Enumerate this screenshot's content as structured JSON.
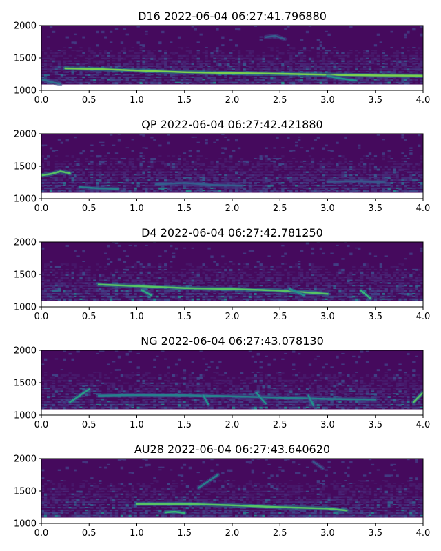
{
  "chart_data": [
    {
      "type": "heatmap",
      "title": "D16 2022-06-04 06:27:41.796880",
      "xlim": [
        0.0,
        4.0
      ],
      "ylim": [
        1000,
        2000
      ],
      "xticks": [
        "0.0",
        "0.5",
        "1.0",
        "1.5",
        "2.0",
        "2.5",
        "3.0",
        "3.5",
        "4.0"
      ],
      "yticks": [
        "1000",
        "1500",
        "2000"
      ],
      "data_floor": 1090,
      "colormap": "viridis",
      "grid": false,
      "tracks": [
        {
          "x": [
            0.25,
            0.6,
            1.0,
            1.5,
            2.0,
            2.5,
            3.0,
            3.5,
            4.0
          ],
          "y": [
            1340,
            1330,
            1305,
            1280,
            1265,
            1255,
            1240,
            1230,
            1225
          ],
          "intensity": 0.85
        },
        {
          "x": [
            0.0,
            0.1,
            0.2
          ],
          "y": [
            1170,
            1130,
            1100
          ],
          "intensity": 0.5
        },
        {
          "x": [
            2.35,
            2.45,
            2.55
          ],
          "y": [
            1820,
            1840,
            1790
          ],
          "intensity": 0.45
        },
        {
          "x": [
            3.0,
            3.15,
            3.3
          ],
          "y": [
            1220,
            1180,
            1150
          ],
          "intensity": 0.6
        }
      ]
    },
    {
      "type": "heatmap",
      "title": "QP 2022-06-04 06:27:42.421880",
      "xlim": [
        0.0,
        4.0
      ],
      "ylim": [
        1000,
        2000
      ],
      "xticks": [
        "0.0",
        "0.5",
        "1.0",
        "1.5",
        "2.0",
        "2.5",
        "3.0",
        "3.5",
        "4.0"
      ],
      "yticks": [
        "1000",
        "1500",
        "2000"
      ],
      "data_floor": 1090,
      "colormap": "viridis",
      "grid": false,
      "tracks": [
        {
          "x": [
            0.0,
            0.1,
            0.2,
            0.3
          ],
          "y": [
            1360,
            1380,
            1420,
            1390
          ],
          "intensity": 0.8
        },
        {
          "x": [
            0.4,
            0.6,
            0.8
          ],
          "y": [
            1180,
            1160,
            1150
          ],
          "intensity": 0.55
        },
        {
          "x": [
            1.2,
            1.5,
            1.8,
            2.1
          ],
          "y": [
            1220,
            1240,
            1210,
            1200
          ],
          "intensity": 0.45
        },
        {
          "x": [
            3.0,
            3.3,
            3.6
          ],
          "y": [
            1260,
            1270,
            1250
          ],
          "intensity": 0.4
        }
      ]
    },
    {
      "type": "heatmap",
      "title": "D4 2022-06-04 06:27:42.781250",
      "xlim": [
        0.0,
        4.0
      ],
      "ylim": [
        1000,
        2000
      ],
      "xticks": [
        "0.0",
        "0.5",
        "1.0",
        "1.5",
        "2.0",
        "2.5",
        "3.0",
        "3.5",
        "4.0"
      ],
      "yticks": [
        "1000",
        "1500",
        "2000"
      ],
      "data_floor": 1090,
      "colormap": "viridis",
      "grid": false,
      "tracks": [
        {
          "x": [
            0.6,
            1.0,
            1.5,
            2.0,
            2.5,
            3.0
          ],
          "y": [
            1345,
            1320,
            1290,
            1275,
            1250,
            1200
          ],
          "intensity": 0.8
        },
        {
          "x": [
            1.05,
            1.15
          ],
          "y": [
            1260,
            1180
          ],
          "intensity": 0.7
        },
        {
          "x": [
            2.6,
            2.75
          ],
          "y": [
            1280,
            1180
          ],
          "intensity": 0.6
        },
        {
          "x": [
            3.35,
            3.45
          ],
          "y": [
            1250,
            1130
          ],
          "intensity": 0.75
        }
      ]
    },
    {
      "type": "heatmap",
      "title": "NG 2022-06-04 06:27:43.078130",
      "xlim": [
        0.0,
        4.0
      ],
      "ylim": [
        1000,
        2000
      ],
      "xticks": [
        "0.0",
        "0.5",
        "1.0",
        "1.5",
        "2.0",
        "2.5",
        "3.0",
        "3.5",
        "4.0"
      ],
      "yticks": [
        "1000",
        "1500",
        "2000"
      ],
      "data_floor": 1090,
      "colormap": "viridis",
      "grid": false,
      "tracks": [
        {
          "x": [
            0.6,
            1.0,
            1.5,
            2.0,
            2.5,
            3.0,
            3.5
          ],
          "y": [
            1300,
            1310,
            1305,
            1290,
            1270,
            1250,
            1240
          ],
          "intensity": 0.55
        },
        {
          "x": [
            0.3,
            0.4,
            0.5
          ],
          "y": [
            1200,
            1300,
            1400
          ],
          "intensity": 0.65
        },
        {
          "x": [
            1.7,
            1.75
          ],
          "y": [
            1300,
            1160
          ],
          "intensity": 0.6
        },
        {
          "x": [
            2.25,
            2.35
          ],
          "y": [
            1350,
            1180
          ],
          "intensity": 0.6
        },
        {
          "x": [
            2.8,
            2.85
          ],
          "y": [
            1300,
            1150
          ],
          "intensity": 0.6
        },
        {
          "x": [
            3.9,
            4.0
          ],
          "y": [
            1200,
            1350
          ],
          "intensity": 0.8
        }
      ]
    },
    {
      "type": "heatmap",
      "title": "AU28 2022-06-04 06:27:43.640620",
      "xlim": [
        0.0,
        4.0
      ],
      "ylim": [
        1000,
        2000
      ],
      "xticks": [
        "0.0",
        "0.5",
        "1.0",
        "1.5",
        "2.0",
        "2.5",
        "3.0",
        "3.5",
        "4.0"
      ],
      "yticks": [
        "1000",
        "1500",
        "2000"
      ],
      "data_floor": 1090,
      "colormap": "viridis",
      "grid": false,
      "tracks": [
        {
          "x": [
            1.0,
            1.5,
            2.0,
            2.5,
            3.0,
            3.2
          ],
          "y": [
            1300,
            1300,
            1280,
            1250,
            1230,
            1200
          ],
          "intensity": 0.8
        },
        {
          "x": [
            1.65,
            1.75,
            1.85
          ],
          "y": [
            1550,
            1650,
            1750
          ],
          "intensity": 0.55
        },
        {
          "x": [
            1.3,
            1.4,
            1.5
          ],
          "y": [
            1170,
            1180,
            1160
          ],
          "intensity": 0.75
        },
        {
          "x": [
            2.85,
            2.95
          ],
          "y": [
            1950,
            1850
          ],
          "intensity": 0.4
        }
      ]
    }
  ]
}
